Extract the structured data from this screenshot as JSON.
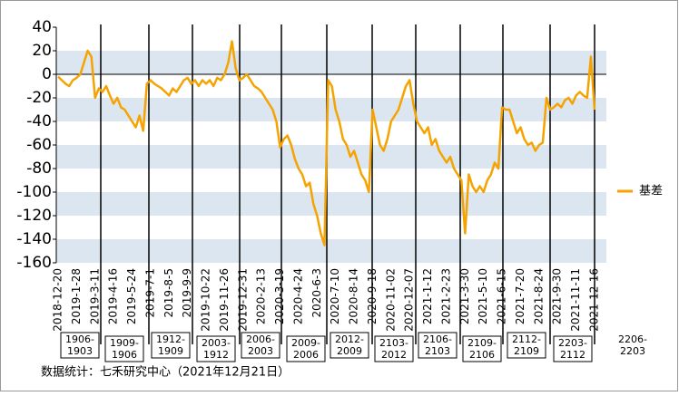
{
  "chart_data": {
    "type": "line",
    "categories": [
      "2018-12-20",
      null,
      null,
      null,
      null,
      "2019-1-28",
      null,
      null,
      null,
      null,
      "2019-3-11",
      null,
      null,
      null,
      null,
      "2019-4-16",
      null,
      null,
      null,
      null,
      "2019-5-24",
      null,
      null,
      null,
      null,
      "2019-7-1",
      null,
      null,
      null,
      null,
      "2019-8-5",
      null,
      null,
      null,
      null,
      "2019-9-9",
      null,
      null,
      null,
      null,
      "2019-10-22",
      null,
      null,
      null,
      null,
      "2019-11-26",
      null,
      null,
      null,
      null,
      "2019-12-31",
      null,
      null,
      null,
      null,
      "2020-2-13",
      null,
      null,
      null,
      null,
      "2020-3-19",
      null,
      null,
      null,
      null,
      "2020-4-24",
      null,
      null,
      null,
      null,
      "2020-6-3",
      null,
      null,
      null,
      null,
      "2020-7-10",
      null,
      null,
      null,
      null,
      "2020-8-14",
      null,
      null,
      null,
      null,
      "2020-9-18",
      null,
      null,
      null,
      null,
      "2020-11-02",
      null,
      null,
      null,
      null,
      "2020-12-07",
      null,
      null,
      null,
      null,
      "2021-1-12",
      null,
      null,
      null,
      null,
      "2021-2-23",
      null,
      null,
      null,
      null,
      "2021-3-30",
      null,
      null,
      null,
      null,
      "2021-5-10",
      null,
      null,
      null,
      null,
      "2021-6-15",
      null,
      null,
      null,
      null,
      "2021-7-20",
      null,
      null,
      null,
      null,
      "2021-8-24",
      null,
      null,
      null,
      null,
      "2021-9-30",
      null,
      null,
      null,
      null,
      "2021-11-11",
      null,
      null,
      null,
      null,
      "2021-12-16"
    ],
    "series": [
      {
        "name": "基差",
        "color": "#f5a300",
        "values": [
          -2,
          -5,
          -8,
          -10,
          -5,
          -3,
          0,
          10,
          20,
          15,
          -20,
          -12,
          -15,
          -10,
          -18,
          -25,
          -20,
          -28,
          -30,
          -35,
          -40,
          -45,
          -35,
          -48,
          -8,
          -5,
          -8,
          -10,
          -12,
          -15,
          -18,
          -12,
          -15,
          -10,
          -5,
          -3,
          -8,
          -5,
          -10,
          -5,
          -8,
          -5,
          -10,
          -3,
          -5,
          0,
          10,
          28,
          5,
          -5,
          -3,
          0,
          -5,
          -10,
          -12,
          -15,
          -20,
          -25,
          -30,
          -40,
          -62,
          -55,
          -52,
          -60,
          -72,
          -80,
          -85,
          -95,
          -92,
          -110,
          -120,
          -135,
          -145,
          -5,
          -10,
          -30,
          -40,
          -55,
          -60,
          -70,
          -65,
          -75,
          -85,
          -90,
          -100,
          -30,
          -45,
          -60,
          -65,
          -55,
          -40,
          -35,
          -30,
          -20,
          -10,
          -5,
          -25,
          -40,
          -45,
          -50,
          -45,
          -60,
          -55,
          -65,
          -70,
          -75,
          -70,
          -80,
          -85,
          -90,
          -135,
          -85,
          -95,
          -100,
          -95,
          -100,
          -90,
          -85,
          -75,
          -80,
          -28,
          -30,
          -30,
          -40,
          -50,
          -45,
          -55,
          -60,
          -58,
          -65,
          -60,
          -58,
          -20,
          -30,
          -28,
          -25,
          -28,
          -22,
          -20,
          -25,
          -18,
          -15,
          -18,
          -20,
          15,
          -30
        ]
      }
    ],
    "ylim": [
      -160,
      40
    ],
    "yticks": [
      -160,
      -140,
      -120,
      -100,
      -80,
      -60,
      -40,
      -20,
      0,
      20,
      40
    ],
    "grid": true,
    "spreads": [
      [
        "1906-",
        "1903"
      ],
      [
        "1909-",
        "1906"
      ],
      [
        "1912-",
        "1909"
      ],
      [
        "2003-",
        "1912"
      ],
      [
        "2006-",
        "2003"
      ],
      [
        "2009-",
        "2006"
      ],
      [
        "2012-",
        "2009"
      ],
      [
        "2103-",
        "2012"
      ],
      [
        "2106-",
        "2103"
      ],
      [
        "2109-",
        "2106"
      ],
      [
        "2112-",
        "2109"
      ],
      [
        "2203-",
        "2112"
      ],
      [
        "2206-",
        "2203"
      ]
    ],
    "source": "数据统计：七禾研究中心（2021年12月21日）"
  }
}
